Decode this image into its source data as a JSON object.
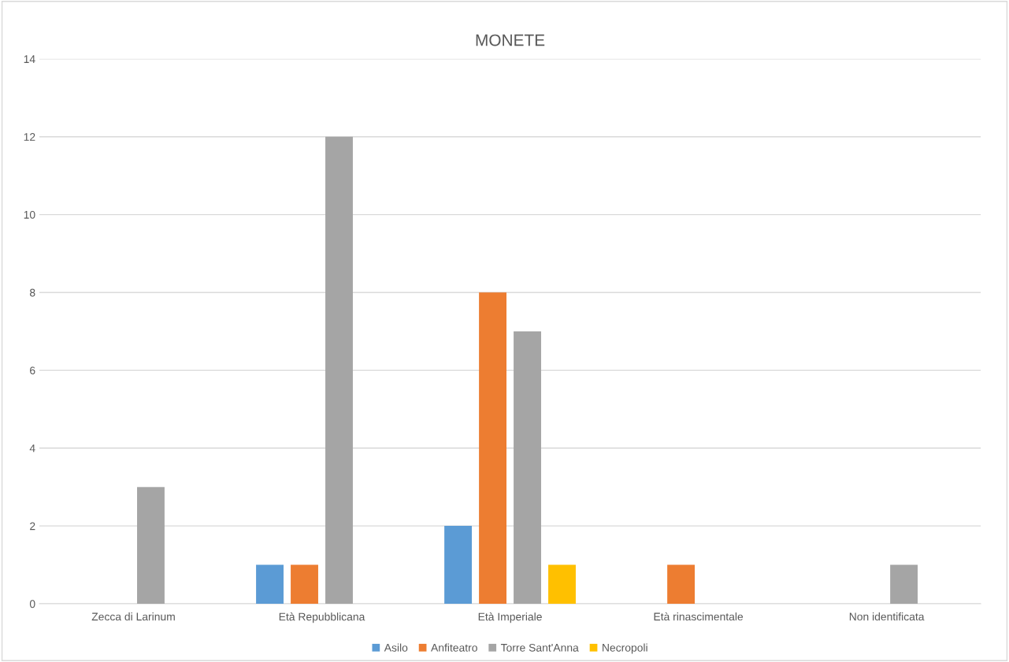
{
  "chart_data": {
    "type": "bar",
    "title": "MONETE",
    "categories": [
      "Zecca di Larinum",
      "Età Repubblicana",
      "Età Imperiale",
      "Età rinascimentale",
      "Non identificata"
    ],
    "series": [
      {
        "name": "Asilo",
        "color": "#5b9bd5",
        "values": [
          0,
          1,
          2,
          0,
          0
        ]
      },
      {
        "name": "Anfiteatro",
        "color": "#ed7d31",
        "values": [
          0,
          1,
          8,
          1,
          0
        ]
      },
      {
        "name": "Torre Sant'Anna",
        "color": "#a5a5a5",
        "values": [
          3,
          12,
          7,
          0,
          1
        ]
      },
      {
        "name": "Necropoli",
        "color": "#ffc000",
        "values": [
          0,
          0,
          1,
          0,
          0
        ]
      }
    ],
    "ylim": [
      0,
      14
    ],
    "yticks": [
      0,
      2,
      4,
      6,
      8,
      10,
      12,
      14
    ],
    "grid": "y",
    "legend": "bottom"
  }
}
